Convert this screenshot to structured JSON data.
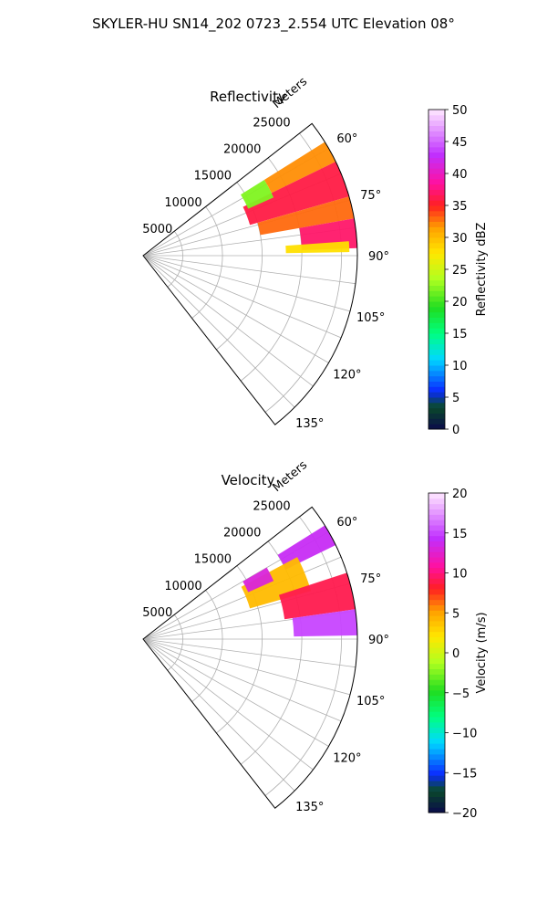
{
  "suptitle": "SKYLER-HU  SN14_202  0723_2.554 UTC Elevation 08°",
  "chart_data": [
    {
      "type": "heatmap",
      "title": "Reflectivity",
      "projection": "polar-sector",
      "theta_range_deg": [
        52,
        142
      ],
      "r_range_m": [
        0,
        27000
      ],
      "radial_label": "Meters",
      "radial_ticks": [
        5000,
        10000,
        15000,
        20000,
        25000
      ],
      "radial_tick_labels": [
        "5000",
        "10000",
        "15000",
        "20000",
        "25000"
      ],
      "angle_ticks": [
        60,
        75,
        90,
        105,
        120,
        135
      ],
      "angle_tick_labels": [
        "60°",
        "75°",
        "90°",
        "105°",
        "120°",
        "135°"
      ],
      "grid": true,
      "colorbar": {
        "label": "Reflectivity dBZ",
        "range": [
          0,
          50
        ],
        "ticks": [
          0,
          5,
          10,
          15,
          20,
          25,
          30,
          35,
          40,
          45,
          50
        ],
        "tick_labels": [
          "0",
          "5",
          "10",
          "15",
          "20",
          "25",
          "30",
          "35",
          "40",
          "45",
          "50"
        ]
      },
      "echoes": [
        {
          "theta": [
            58,
            64
          ],
          "r": [
            18000,
            27000
          ],
          "value": 32
        },
        {
          "theta": [
            64,
            74
          ],
          "r": [
            14000,
            27000
          ],
          "value": 36
        },
        {
          "theta": [
            74,
            80
          ],
          "r": [
            15000,
            27000
          ],
          "value": 33
        },
        {
          "theta": [
            80,
            88
          ],
          "r": [
            20000,
            27000
          ],
          "value": 37
        },
        {
          "theta": [
            58,
            66
          ],
          "r": [
            14500,
            18000
          ],
          "value": 22
        },
        {
          "theta": [
            86,
            89
          ],
          "r": [
            18000,
            26000
          ],
          "value": 28
        }
      ]
    },
    {
      "type": "heatmap",
      "title": "Velocity",
      "projection": "polar-sector",
      "theta_range_deg": [
        52,
        142
      ],
      "r_range_m": [
        0,
        27000
      ],
      "radial_label": "Meters",
      "radial_ticks": [
        5000,
        10000,
        15000,
        20000,
        25000
      ],
      "radial_tick_labels": [
        "5000",
        "10000",
        "15000",
        "20000",
        "25000"
      ],
      "angle_ticks": [
        60,
        75,
        90,
        105,
        120,
        135
      ],
      "angle_tick_labels": [
        "60°",
        "75°",
        "90°",
        "105°",
        "120°",
        "135°"
      ],
      "grid": true,
      "colorbar": {
        "label": "Velocity (m/s)",
        "range": [
          -20,
          20
        ],
        "ticks": [
          -20,
          -15,
          -10,
          -5,
          0,
          5,
          10,
          15,
          20
        ],
        "tick_labels": [
          "−20",
          "−15",
          "−10",
          "−5",
          "0",
          "5",
          "10",
          "15",
          "20"
        ]
      },
      "echoes": [
        {
          "theta": [
            58,
            64
          ],
          "r": [
            20000,
            27000
          ],
          "value": 14
        },
        {
          "theta": [
            62,
            74
          ],
          "r": [
            14000,
            22000
          ],
          "value": 4
        },
        {
          "theta": [
            72,
            82
          ],
          "r": [
            18000,
            27000
          ],
          "value": 9
        },
        {
          "theta": [
            82,
            89
          ],
          "r": [
            19000,
            27000
          ],
          "value": 15
        },
        {
          "theta": [
            60,
            66
          ],
          "r": [
            14500,
            18000
          ],
          "value": 13
        }
      ]
    }
  ]
}
